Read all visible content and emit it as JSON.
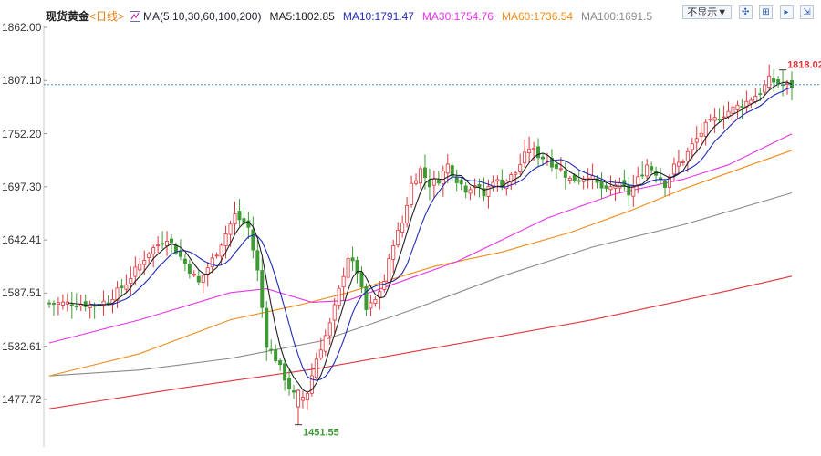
{
  "title": "现货黄金",
  "period_label": "<日线>",
  "ma_header": "MA(5,10,30,60,100,200)",
  "ma_values": [
    {
      "label": "MA5:1802.85",
      "color": "#222222"
    },
    {
      "label": "MA10:1791.47",
      "color": "#1f2bb5"
    },
    {
      "label": "MA30:1754.76",
      "color": "#e635e6"
    },
    {
      "label": "MA60:1736.54",
      "color": "#f08c1a"
    },
    {
      "label": "MA100:1691.5",
      "color": "#8a8a8a"
    }
  ],
  "toolbar": {
    "hide_button": "不显示▼",
    "icons": [
      "move-icon",
      "zoom-in-icon",
      "zoom-out-icon",
      "export-icon"
    ]
  },
  "colors": {
    "up": "#e0343a",
    "down": "#3f9a35",
    "ma5": "#222222",
    "ma10": "#1f2bb5",
    "ma30": "#e635e6",
    "ma60": "#f08c1a",
    "ma100": "#8a8a8a",
    "ma200": "#e0343a",
    "current_line": "#4c8fd6",
    "high_label": "#e0343a",
    "low_label": "#3f9a35"
  },
  "chart_data": {
    "type": "candlestick",
    "y_ticks": [
      "1862.00",
      "1807.10",
      "1752.20",
      "1697.30",
      "1642.41",
      "1587.51",
      "1532.61",
      "1477.72"
    ],
    "ylim": [
      1455,
      1862
    ],
    "current_price": 1802.85,
    "high_marker": {
      "label": "1818.02",
      "value": 1818.02
    },
    "low_marker": {
      "label": "1451.55",
      "value": 1451.55
    },
    "key_points": [
      {
        "i": 0,
        "p": 1577
      },
      {
        "i": 6,
        "p": 1577
      },
      {
        "i": 10,
        "p": 1575
      },
      {
        "i": 13,
        "p": 1580
      },
      {
        "i": 17,
        "p": 1598
      },
      {
        "i": 22,
        "p": 1630
      },
      {
        "i": 26,
        "p": 1645
      },
      {
        "i": 29,
        "p": 1625
      },
      {
        "i": 33,
        "p": 1598
      },
      {
        "i": 37,
        "p": 1630
      },
      {
        "i": 41,
        "p": 1668
      },
      {
        "i": 44,
        "p": 1655
      },
      {
        "i": 46,
        "p": 1610
      },
      {
        "i": 48,
        "p": 1535
      },
      {
        "i": 50,
        "p": 1520
      },
      {
        "i": 53,
        "p": 1490
      },
      {
        "i": 55,
        "p": 1475
      },
      {
        "i": 57,
        "p": 1485
      },
      {
        "i": 59,
        "p": 1520
      },
      {
        "i": 62,
        "p": 1555
      },
      {
        "i": 64,
        "p": 1590
      },
      {
        "i": 66,
        "p": 1625
      },
      {
        "i": 68,
        "p": 1610
      },
      {
        "i": 70,
        "p": 1570
      },
      {
        "i": 72,
        "p": 1580
      },
      {
        "i": 74,
        "p": 1600
      },
      {
        "i": 76,
        "p": 1640
      },
      {
        "i": 78,
        "p": 1660
      },
      {
        "i": 80,
        "p": 1700
      },
      {
        "i": 82,
        "p": 1715
      },
      {
        "i": 84,
        "p": 1700
      },
      {
        "i": 86,
        "p": 1705
      },
      {
        "i": 88,
        "p": 1720
      },
      {
        "i": 90,
        "p": 1705
      },
      {
        "i": 92,
        "p": 1695
      },
      {
        "i": 94,
        "p": 1700
      },
      {
        "i": 96,
        "p": 1688
      },
      {
        "i": 98,
        "p": 1705
      },
      {
        "i": 100,
        "p": 1700
      },
      {
        "i": 103,
        "p": 1712
      },
      {
        "i": 106,
        "p": 1738
      },
      {
        "i": 108,
        "p": 1730
      },
      {
        "i": 110,
        "p": 1725
      },
      {
        "i": 113,
        "p": 1715
      },
      {
        "i": 115,
        "p": 1705
      },
      {
        "i": 117,
        "p": 1705
      },
      {
        "i": 119,
        "p": 1710
      },
      {
        "i": 121,
        "p": 1700
      },
      {
        "i": 123,
        "p": 1692
      },
      {
        "i": 125,
        "p": 1700
      },
      {
        "i": 127,
        "p": 1695
      },
      {
        "i": 128,
        "p": 1690
      },
      {
        "i": 130,
        "p": 1705
      },
      {
        "i": 132,
        "p": 1720
      },
      {
        "i": 134,
        "p": 1712
      },
      {
        "i": 136,
        "p": 1700
      },
      {
        "i": 138,
        "p": 1718
      },
      {
        "i": 140,
        "p": 1725
      },
      {
        "i": 142,
        "p": 1740
      },
      {
        "i": 145,
        "p": 1760
      },
      {
        "i": 148,
        "p": 1770
      },
      {
        "i": 151,
        "p": 1778
      },
      {
        "i": 154,
        "p": 1785
      },
      {
        "i": 157,
        "p": 1795
      },
      {
        "i": 159,
        "p": 1808
      },
      {
        "i": 162,
        "p": 1802
      },
      {
        "i": 164,
        "p": 1802
      }
    ],
    "ma_lines": {
      "ma30": [
        [
          0,
          1536
        ],
        [
          20,
          1560
        ],
        [
          40,
          1588
        ],
        [
          48,
          1592
        ],
        [
          58,
          1578
        ],
        [
          66,
          1580
        ],
        [
          72,
          1590
        ],
        [
          90,
          1620
        ],
        [
          110,
          1665
        ],
        [
          125,
          1690
        ],
        [
          140,
          1705
        ],
        [
          150,
          1720
        ],
        [
          164,
          1752
        ]
      ],
      "ma60": [
        [
          0,
          1502
        ],
        [
          20,
          1525
        ],
        [
          40,
          1560
        ],
        [
          55,
          1575
        ],
        [
          66,
          1588
        ],
        [
          85,
          1615
        ],
        [
          100,
          1630
        ],
        [
          115,
          1650
        ],
        [
          128,
          1672
        ],
        [
          140,
          1695
        ],
        [
          164,
          1735
        ]
      ],
      "ma100": [
        [
          0,
          1502
        ],
        [
          20,
          1508
        ],
        [
          40,
          1520
        ],
        [
          60,
          1538
        ],
        [
          80,
          1570
        ],
        [
          100,
          1605
        ],
        [
          120,
          1635
        ],
        [
          140,
          1658
        ],
        [
          164,
          1691
        ]
      ],
      "ma200": [
        [
          0,
          1468
        ],
        [
          30,
          1490
        ],
        [
          60,
          1510
        ],
        [
          90,
          1535
        ],
        [
          120,
          1560
        ],
        [
          150,
          1590
        ],
        [
          164,
          1605
        ]
      ]
    }
  }
}
